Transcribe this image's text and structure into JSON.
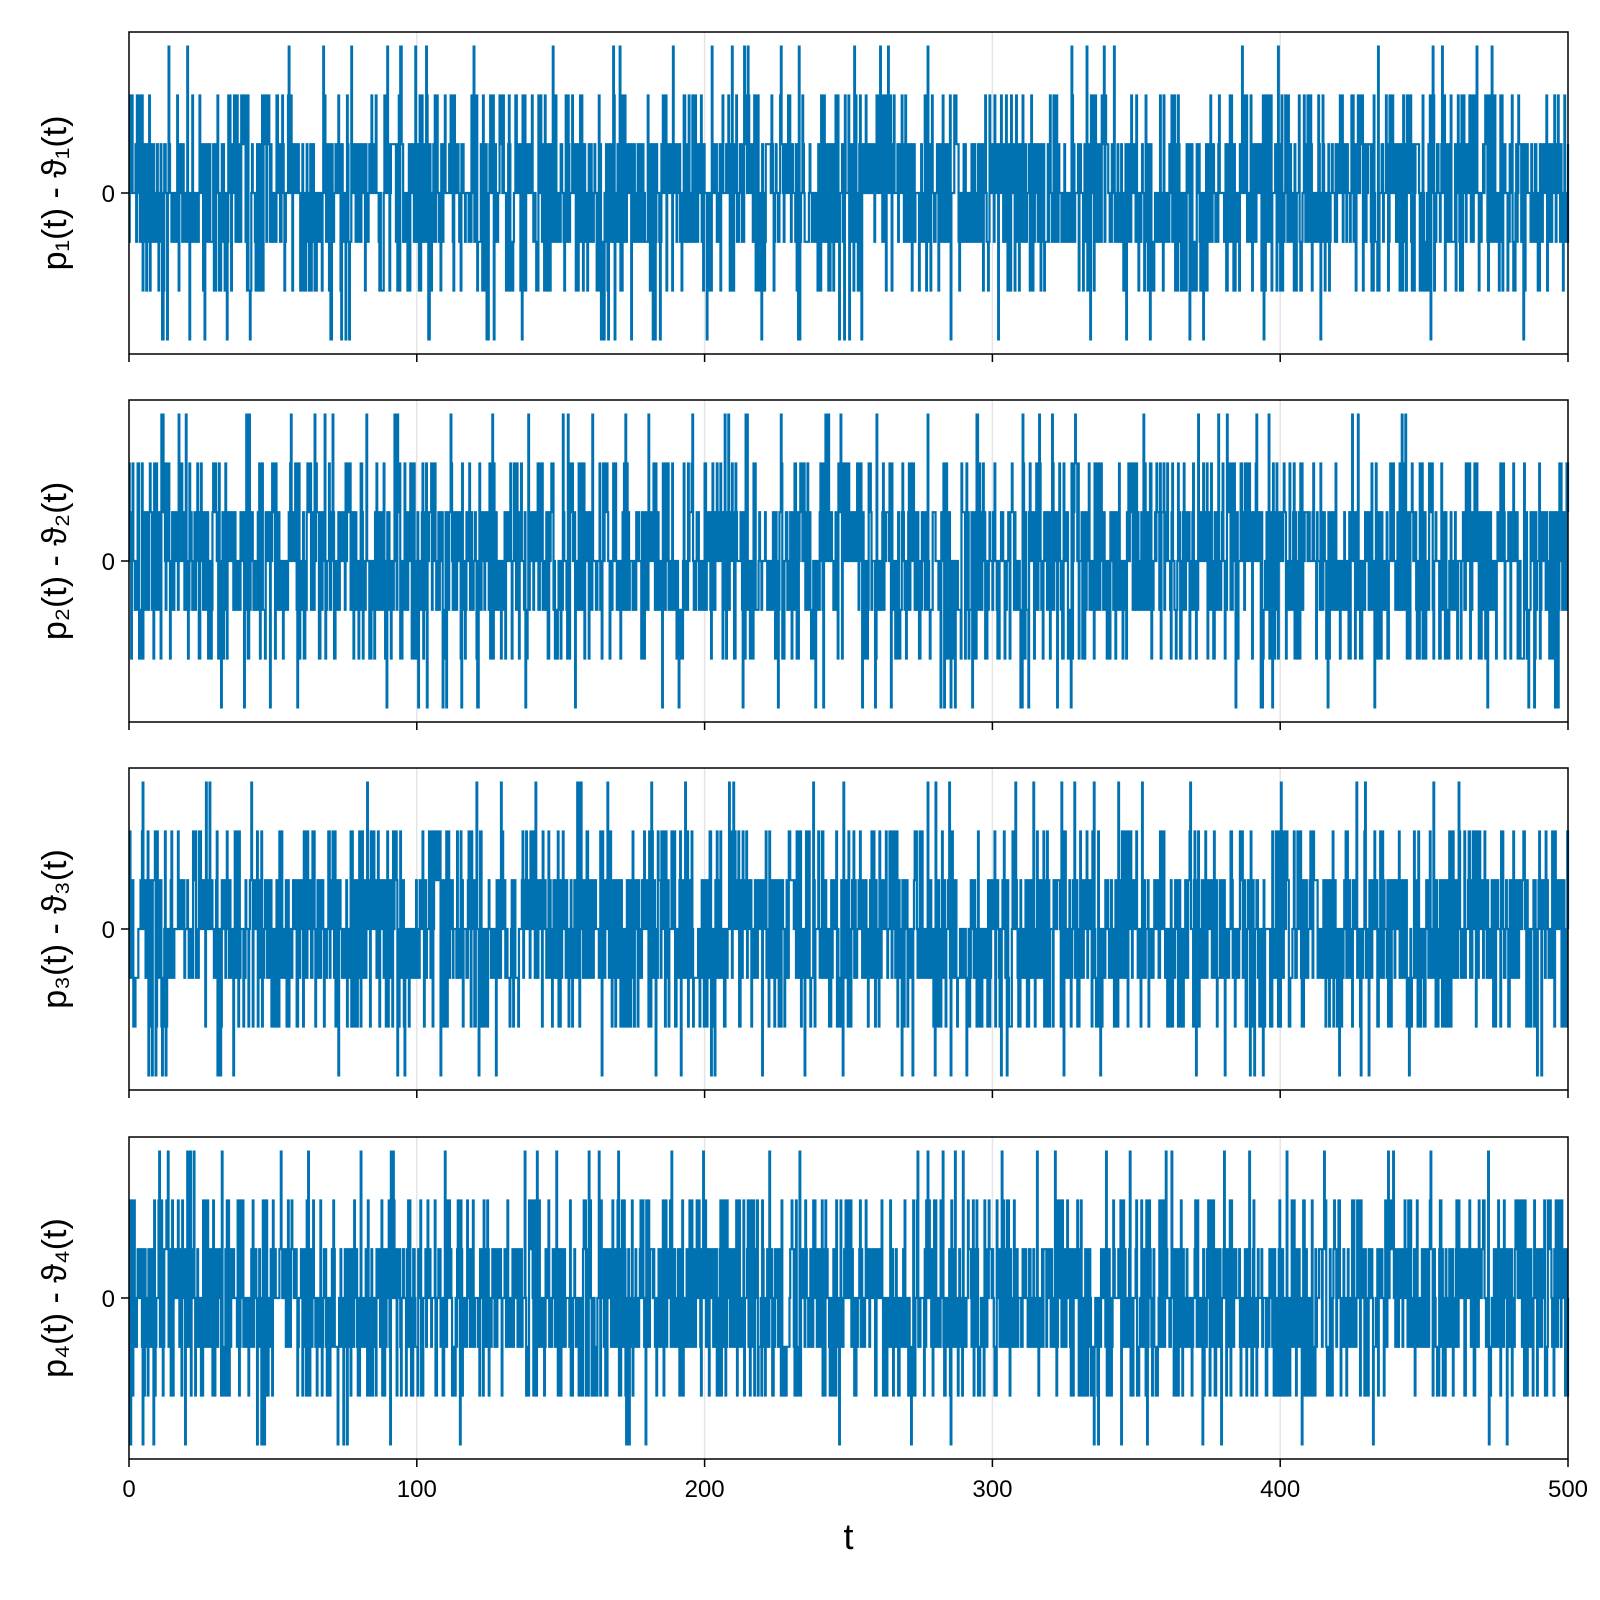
{
  "chart_data": [
    {
      "type": "line",
      "ylabel": "p₁(t) - ϑ₁(t)",
      "xlim": [
        0,
        500
      ],
      "ylim": [
        -3.3,
        3.3
      ],
      "y_ticks": [
        "0"
      ],
      "x_ticks": [],
      "levels": [
        -3,
        -2,
        -1,
        0,
        1,
        2,
        3
      ],
      "series": [
        {
          "color": "#0072b2",
          "x_range": [
            0,
            500
          ],
          "approximate": true
        }
      ]
    },
    {
      "type": "line",
      "ylabel": "p₂(t) - ϑ₂(t)",
      "xlim": [
        0,
        500
      ],
      "ylim": [
        -3.3,
        3.3
      ],
      "y_ticks": [
        "0"
      ],
      "x_ticks": [],
      "levels": [
        -3,
        -2,
        -1,
        0,
        1,
        2,
        3
      ],
      "series": [
        {
          "color": "#0072b2",
          "x_range": [
            0,
            500
          ],
          "approximate": true
        }
      ]
    },
    {
      "type": "line",
      "ylabel": "p₃(t) - ϑ₃(t)",
      "xlim": [
        0,
        500
      ],
      "ylim": [
        -3.3,
        3.3
      ],
      "y_ticks": [
        "0"
      ],
      "x_ticks": [],
      "levels": [
        -3,
        -2,
        -1,
        0,
        1,
        2,
        3
      ],
      "series": [
        {
          "color": "#0072b2",
          "x_range": [
            0,
            500
          ],
          "approximate": true
        }
      ]
    },
    {
      "type": "line",
      "ylabel": "p₄(t) - ϑ₄(t)",
      "xlabel": "t",
      "xlim": [
        0,
        500
      ],
      "ylim": [
        -3.3,
        3.3
      ],
      "y_ticks": [
        "0"
      ],
      "x_ticks": [
        "0",
        "100",
        "200",
        "300",
        "400",
        "500"
      ],
      "levels": [
        -3,
        -2,
        -1,
        0,
        1,
        2,
        3
      ],
      "series": [
        {
          "color": "#0072b2",
          "x_range": [
            0,
            500
          ],
          "approximate": true
        }
      ]
    }
  ],
  "style": {
    "line_color": "#0072b2",
    "grid_color": "#e5e5e5",
    "grid": true
  }
}
